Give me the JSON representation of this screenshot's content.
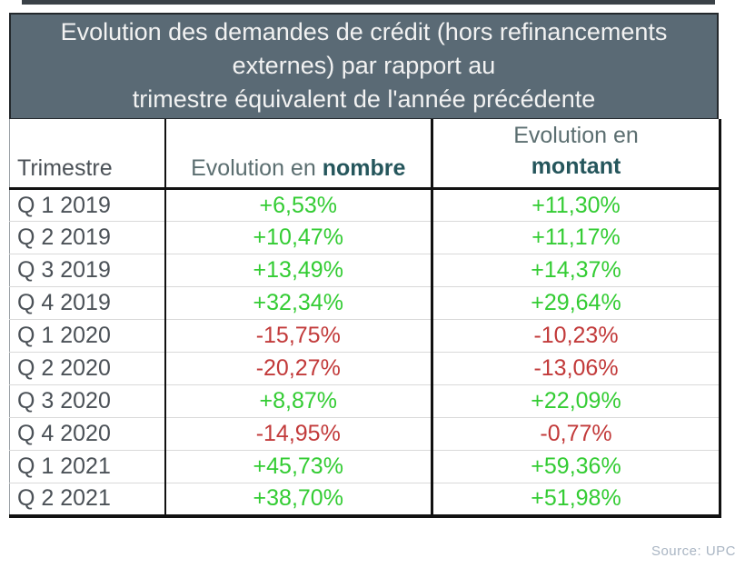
{
  "title": {
    "lines": [
      "Evolution des demandes de crédit (hors refinancements",
      "externes) par rapport au",
      "trimestre équivalent de l'année précédente"
    ],
    "bg": "#5a6a75",
    "text_color": "#f2f2f2"
  },
  "table": {
    "headers": {
      "trimestre": "Trimestre",
      "nombre_prefix": "Evolution en",
      "nombre_bold": "nombre",
      "montant_prefix": "Evolution en",
      "montant_bold": "montant"
    },
    "rows": [
      {
        "trimestre": "Q 1 2019",
        "nombre": "+6,53%",
        "montant": "+11,30%"
      },
      {
        "trimestre": "Q 2 2019",
        "nombre": "+10,47%",
        "montant": "+11,17%"
      },
      {
        "trimestre": "Q 3 2019",
        "nombre": "+13,49%",
        "montant": "+14,37%"
      },
      {
        "trimestre": "Q 4 2019",
        "nombre": "+32,34%",
        "montant": "+29,64%"
      },
      {
        "trimestre": "Q 1 2020",
        "nombre": "-15,75%",
        "montant": "-10,23%"
      },
      {
        "trimestre": "Q 2 2020",
        "nombre": "-20,27%",
        "montant": "-13,06%"
      },
      {
        "trimestre": "Q 3 2020",
        "nombre": "+8,87%",
        "montant": "+22,09%"
      },
      {
        "trimestre": "Q 4 2020",
        "nombre": "-14,95%",
        "montant": "-0,77%"
      },
      {
        "trimestre": "Q 1 2021",
        "nombre": "+45,73%",
        "montant": "+59,36%"
      },
      {
        "trimestre": "Q 2 2021",
        "nombre": "+38,70%",
        "montant": "+51,98%"
      }
    ],
    "colors": {
      "positive": "#33cc33",
      "negative": "#c23a3a",
      "header_teal": "#25565c",
      "label_gray": "#4b5157"
    }
  },
  "footer": {
    "source": "Source: UPC",
    "color": "#a9b5c3"
  },
  "chart_data": {
    "type": "table",
    "title": "Evolution des demandes de crédit (hors refinancements externes) par rapport au trimestre équivalent de l'année précédente",
    "categories": [
      "Q 1 2019",
      "Q 2 2019",
      "Q 3 2019",
      "Q 4 2019",
      "Q 1 2020",
      "Q 2 2020",
      "Q 3 2020",
      "Q 4 2020",
      "Q 1 2021",
      "Q 2 2021"
    ],
    "series": [
      {
        "name": "Evolution en nombre",
        "values": [
          6.53,
          10.47,
          13.49,
          32.34,
          -15.75,
          -20.27,
          8.87,
          -14.95,
          45.73,
          38.7
        ]
      },
      {
        "name": "Evolution en montant",
        "values": [
          11.3,
          11.17,
          14.37,
          29.64,
          -10.23,
          -13.06,
          22.09,
          -0.77,
          59.36,
          51.98
        ]
      }
    ],
    "value_unit": "%",
    "positive_color": "#33cc33",
    "negative_color": "#c23a3a",
    "source": "Source: UPC"
  }
}
